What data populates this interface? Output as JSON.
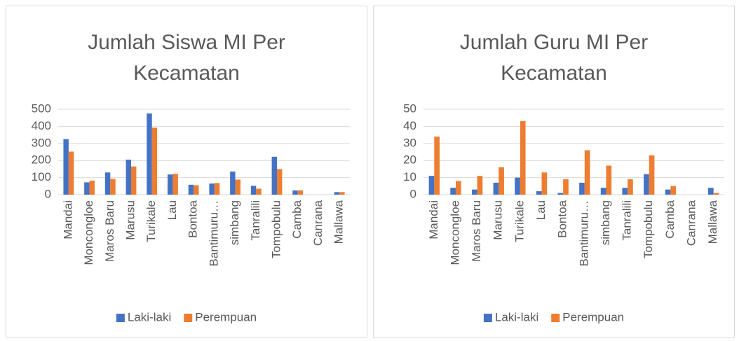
{
  "chart_data": [
    {
      "type": "bar",
      "title": "Jumlah Siswa MI Per Kecamatan",
      "categories": [
        "Mandai",
        "Moncongloe",
        "Maros Baru",
        "Marusu",
        "Turikale",
        "Lau",
        "Bontoa",
        "Bantimuru…",
        "simbang",
        "Tanralili",
        "Tompobulu",
        "Camba",
        "Canrana",
        "Mallawa"
      ],
      "series": [
        {
          "name": "Laki-laki",
          "color": "#4472c4",
          "values": [
            325,
            72,
            130,
            205,
            475,
            118,
            58,
            65,
            135,
            52,
            222,
            25,
            0,
            15
          ]
        },
        {
          "name": "Perempuan",
          "color": "#ed7d31",
          "values": [
            252,
            82,
            92,
            165,
            392,
            122,
            55,
            68,
            88,
            35,
            150,
            25,
            0,
            15
          ]
        }
      ],
      "ylim": [
        0,
        500
      ],
      "yticks": [
        0,
        100,
        200,
        300,
        400,
        500
      ],
      "grid": true,
      "legend": "bottom"
    },
    {
      "type": "bar",
      "title": "Jumlah Guru MI Per Kecamatan",
      "categories": [
        "Mandai",
        "Moncongloe",
        "Maros Baru",
        "Marusu",
        "Turikale",
        "Lau",
        "Bontoa",
        "Bantimuru…",
        "simbang",
        "Tanralili",
        "Tompobulu",
        "Camba",
        "Canrana",
        "Mallawa"
      ],
      "series": [
        {
          "name": "Laki-laki",
          "color": "#4472c4",
          "values": [
            11,
            4,
            3,
            7,
            10,
            2,
            1,
            7,
            4,
            4,
            12,
            3,
            0,
            4
          ]
        },
        {
          "name": "Perempuan",
          "color": "#ed7d31",
          "values": [
            34,
            8,
            11,
            16,
            43,
            13,
            9,
            26,
            17,
            9,
            23,
            5,
            0,
            1
          ]
        }
      ],
      "ylim": [
        0,
        50
      ],
      "yticks": [
        0,
        10,
        20,
        30,
        40,
        50
      ],
      "grid": true,
      "legend": "bottom"
    }
  ]
}
